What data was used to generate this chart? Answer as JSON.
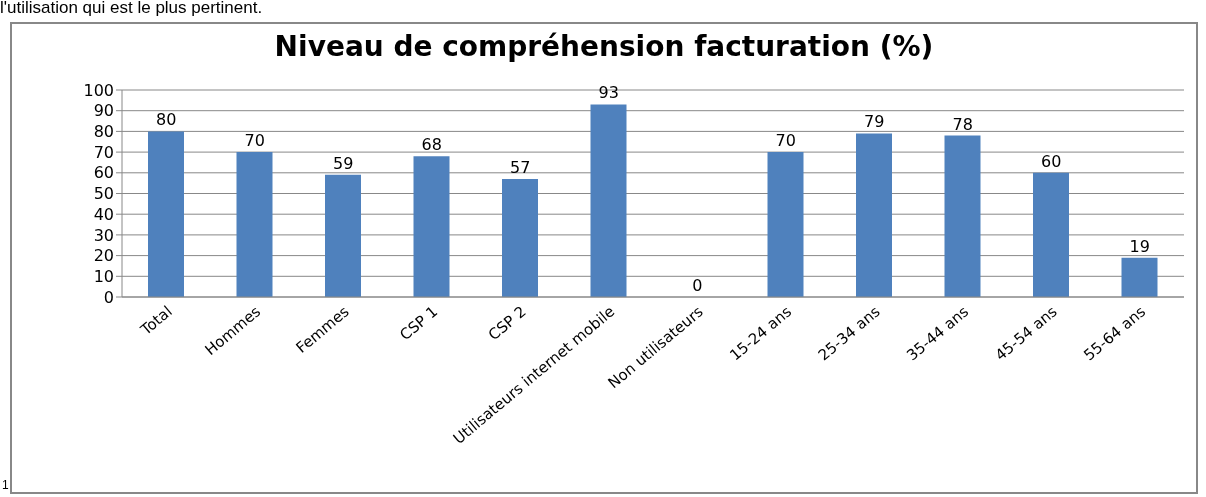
{
  "chart_data": {
    "type": "bar",
    "title": "Niveau de compréhension facturation (%)",
    "categories": [
      "Total",
      "Hommes",
      "Femmes",
      "CSP 1",
      "CSP 2",
      "Utilisateurs internet mobile",
      "Non utilisateurs",
      "15-24 ans",
      "25-34 ans",
      "35-44 ans",
      "45-54 ans",
      "55-64 ans"
    ],
    "values": [
      80,
      70,
      59,
      68,
      57,
      93,
      0,
      70,
      79,
      78,
      60,
      19
    ],
    "color": "#4f81bd",
    "ylim": [
      0,
      100
    ],
    "yticks": [
      0,
      10,
      20,
      30,
      40,
      50,
      60,
      70,
      80,
      90,
      100
    ],
    "grid": "y",
    "data_labels": true,
    "annotations": [
      "l'utilisation qui est le plus pertinent.",
      "1"
    ]
  }
}
